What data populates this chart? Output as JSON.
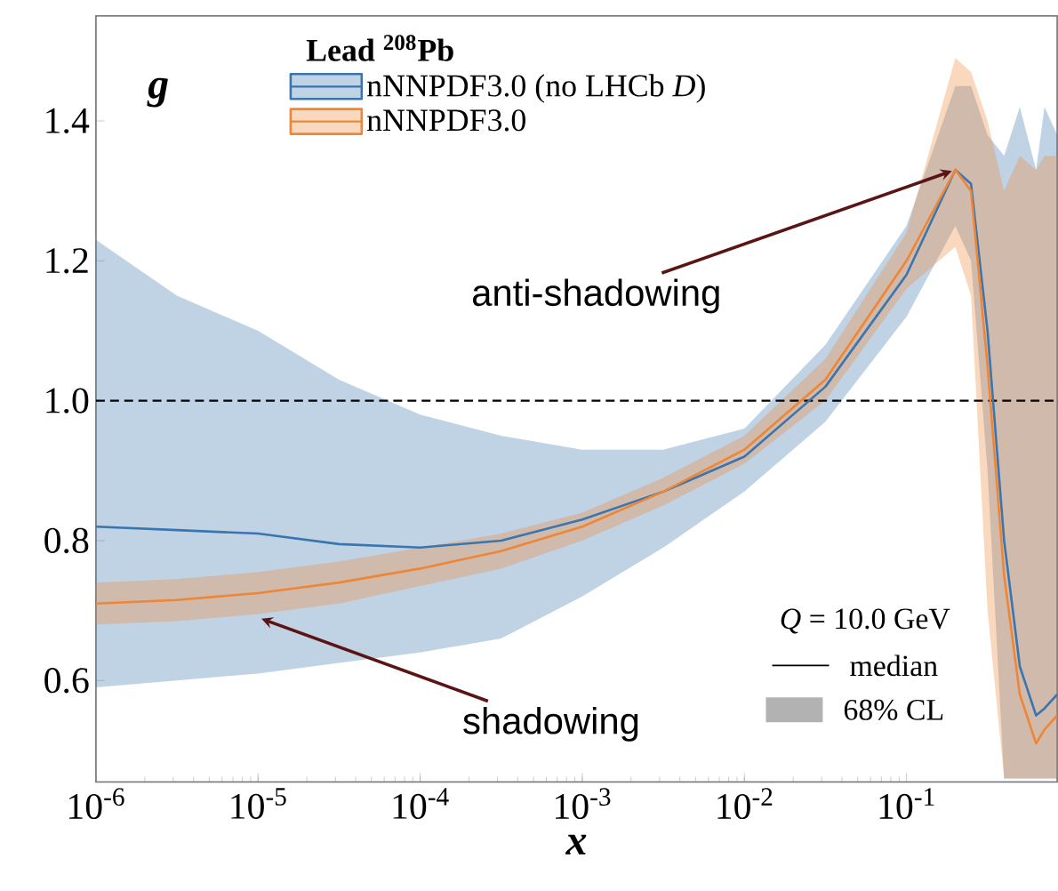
{
  "chart_data": {
    "type": "line",
    "xlabel": "x",
    "ylabel": "g",
    "legend_title": "Lead $^{208}$Pb",
    "x": [
      1e-06,
      3.16e-06,
      1e-05,
      3.16e-05,
      0.0001,
      0.000316,
      0.001,
      0.00316,
      0.01,
      0.0316,
      0.1,
      0.2,
      0.25,
      0.316,
      0.4,
      0.5,
      0.63,
      0.71,
      0.85
    ],
    "series": [
      {
        "name": "nNNPDF3.0 (no LHCb *D*)",
        "color": "#3b75af",
        "values": [
          0.82,
          0.815,
          0.81,
          0.795,
          0.79,
          0.8,
          0.83,
          0.87,
          0.92,
          1.02,
          1.18,
          1.33,
          1.31,
          1.1,
          0.8,
          0.62,
          0.55,
          0.56,
          0.58
        ],
        "lower": [
          0.59,
          0.6,
          0.61,
          0.625,
          0.64,
          0.66,
          0.72,
          0.79,
          0.87,
          0.97,
          1.12,
          1.25,
          1.2,
          0.9,
          0.46,
          0.46,
          0.46,
          0.46,
          0.46
        ],
        "upper": [
          1.23,
          1.15,
          1.1,
          1.03,
          0.98,
          0.95,
          0.93,
          0.93,
          0.96,
          1.08,
          1.25,
          1.45,
          1.45,
          1.38,
          1.35,
          1.42,
          1.33,
          1.42,
          1.38
        ]
      },
      {
        "name": "nNNPDF3.0",
        "color": "#ef8636",
        "values": [
          0.71,
          0.715,
          0.725,
          0.74,
          0.76,
          0.785,
          0.82,
          0.87,
          0.93,
          1.03,
          1.2,
          1.33,
          1.3,
          1.05,
          0.75,
          0.58,
          0.51,
          0.53,
          0.55
        ],
        "lower": [
          0.68,
          0.685,
          0.695,
          0.71,
          0.735,
          0.76,
          0.8,
          0.85,
          0.91,
          1.0,
          1.16,
          1.22,
          1.15,
          0.7,
          0.46,
          0.46,
          0.46,
          0.46,
          0.46
        ],
        "upper": [
          0.74,
          0.745,
          0.755,
          0.77,
          0.79,
          0.81,
          0.84,
          0.89,
          0.95,
          1.06,
          1.24,
          1.49,
          1.47,
          1.4,
          1.3,
          1.35,
          1.33,
          1.35,
          1.35
        ]
      }
    ],
    "log": "x",
    "xlim": [
      1e-06,
      0.85
    ],
    "ylim": [
      0.455,
      1.55
    ],
    "xticks": [
      {
        "value": 1e-06,
        "label": "10$^{-6}$"
      },
      {
        "value": 1e-05,
        "label": "10$^{-5}$"
      },
      {
        "value": 0.0001,
        "label": "10$^{-4}$"
      },
      {
        "value": 0.001,
        "label": "10$^{-3}$"
      },
      {
        "value": 0.01,
        "label": "10$^{-2}$"
      },
      {
        "value": 0.1,
        "label": "10$^{-1}$"
      }
    ],
    "yticks": [
      {
        "value": 0.6,
        "label": "0.6"
      },
      {
        "value": 0.8,
        "label": "0.8"
      },
      {
        "value": 1.0,
        "label": "1.0"
      },
      {
        "value": 1.2,
        "label": "1.2"
      },
      {
        "value": 1.4,
        "label": "1.4"
      }
    ],
    "ref_lines": [
      {
        "axis": "y",
        "value": 1.0,
        "line_style": "dashed",
        "color": "#000000"
      }
    ],
    "annotations": [
      {
        "text": "anti-shadowing",
        "x": 0.2,
        "y": 1.33
      },
      {
        "text": "shadowing",
        "x": 1e-05,
        "y": 0.69
      },
      "*Q* = 10.0 GeV",
      "median",
      "68% CL"
    ],
    "legend": "top",
    "marker": "none",
    "line_style": "solid"
  }
}
